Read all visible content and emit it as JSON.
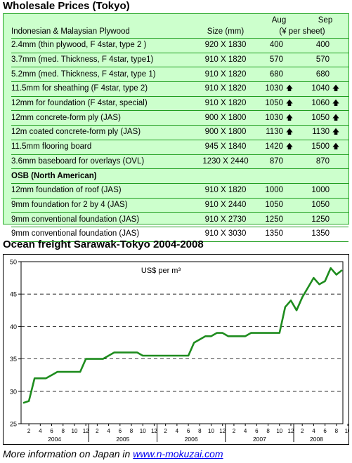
{
  "wholesale": {
    "title": "Wholesale Prices (Tokyo)",
    "header": {
      "category": "Indonesian & Malaysian Plywood",
      "size": "Size (mm)",
      "aug": "Aug",
      "sep": "Sep",
      "unit": "(¥ per sheet)"
    },
    "rows": [
      {
        "name": "2.4mm  (thin plywood, F 4star, type 2 )",
        "size": "920 X 1830",
        "aug": "400",
        "aug_up": false,
        "sep": "400",
        "sep_up": false,
        "bold": false
      },
      {
        "name": "3.7mm  (med. Thickness,  F 4star, type1)",
        "size": "910 X 1820",
        "aug": "570",
        "aug_up": false,
        "sep": "570",
        "sep_up": false,
        "bold": false
      },
      {
        "name": "5.2mm  (med. Thickness, F 4star, type 1)",
        "size": "910 X 1820",
        "aug": "680",
        "aug_up": false,
        "sep": "680",
        "sep_up": false,
        "bold": false
      },
      {
        "name": "11.5mm  for sheathing (F 4star, type 2)",
        "size": "910 X 1820",
        "aug": "1030",
        "aug_up": true,
        "sep": "1040",
        "sep_up": true,
        "bold": false
      },
      {
        "name": "12mm for foundation (F 4star, special)",
        "size": "910 X 1820",
        "aug": "1050",
        "aug_up": true,
        "sep": "1060",
        "sep_up": true,
        "bold": false
      },
      {
        "name": "12mm concrete-form ply (JAS)",
        "size": "900 X 1800",
        "aug": "1030",
        "aug_up": true,
        "sep": "1050",
        "sep_up": true,
        "bold": false
      },
      {
        "name": "12m coated concrete-form ply (JAS)",
        "size": "900 X 1800",
        "aug": "1130",
        "aug_up": true,
        "sep": "1130",
        "sep_up": true,
        "bold": false
      },
      {
        "name": "11.5mm flooring board",
        "size": "945 X 1840",
        "aug": "1420",
        "aug_up": true,
        "sep": "1500",
        "sep_up": true,
        "bold": false
      },
      {
        "name": "3.6mm baseboard for overlays (OVL)",
        "size": "1230 X 2440",
        "aug": "870",
        "aug_up": false,
        "sep": "870",
        "sep_up": false,
        "bold": false
      },
      {
        "name": "OSB (North American)",
        "size": "",
        "aug": "",
        "aug_up": false,
        "sep": "",
        "sep_up": false,
        "bold": true
      },
      {
        "name": "12mm foundation of roof (JAS)",
        "size": "910 X 1820",
        "aug": "1000",
        "aug_up": false,
        "sep": "1000",
        "sep_up": false,
        "bold": false
      },
      {
        "name": "9mm foundation for 2 by 4 (JAS)",
        "size": "910 X 2440",
        "aug": "1050",
        "aug_up": false,
        "sep": "1050",
        "sep_up": false,
        "bold": false
      },
      {
        "name": "9mm conventional foundation (JAS)",
        "size": "910 X 2730",
        "aug": "1250",
        "aug_up": false,
        "sep": "1250",
        "sep_up": false,
        "bold": false
      },
      {
        "name": "9mm conventional foundation (JAS)",
        "size": "910 X 3030",
        "aug": "1350",
        "aug_up": false,
        "sep": "1350",
        "sep_up": false,
        "bold": false
      }
    ],
    "up_arrow_glyph": "🡅"
  },
  "freight": {
    "title": "Ocean freight Sarawak-Tokyo 2004-2008"
  },
  "chart_data": {
    "type": "line",
    "title": "Ocean freight Sarawak-Tokyo 2004-2008",
    "annotation": "US$ per m³",
    "xlabel": "",
    "ylabel": "",
    "ylim": [
      25,
      50
    ],
    "yticks": [
      25,
      30,
      35,
      40,
      45,
      50
    ],
    "grid": "dashed horizontal at 35, 40, 45",
    "month_ticks": [
      "2",
      "4",
      "6",
      "8",
      "10",
      "12",
      "2",
      "4",
      "6",
      "8",
      "10",
      "12",
      "2",
      "4",
      "6",
      "8",
      "10",
      "12",
      "2",
      "4",
      "6",
      "8",
      "10",
      "12",
      "2",
      "4",
      "6",
      "8",
      "10"
    ],
    "year_labels": [
      {
        "label": "2004",
        "center_month_index": 6
      },
      {
        "label": "2005",
        "center_month_index": 18
      },
      {
        "label": "2006",
        "center_month_index": 30
      },
      {
        "label": "2007",
        "center_month_index": 42
      },
      {
        "label": "2008",
        "center_month_index": 52
      }
    ],
    "series": [
      {
        "color": "#1e8c1e",
        "x": [
          "2004-01",
          "2004-02",
          "2004-03",
          "2004-04",
          "2004-05",
          "2004-06",
          "2004-07",
          "2004-08",
          "2004-09",
          "2004-10",
          "2004-11",
          "2004-12",
          "2005-01",
          "2005-02",
          "2005-03",
          "2005-04",
          "2005-05",
          "2005-06",
          "2005-07",
          "2005-08",
          "2005-09",
          "2005-10",
          "2005-11",
          "2005-12",
          "2006-01",
          "2006-02",
          "2006-03",
          "2006-04",
          "2006-05",
          "2006-06",
          "2006-07",
          "2006-08",
          "2006-09",
          "2006-10",
          "2006-11",
          "2006-12",
          "2007-01",
          "2007-02",
          "2007-03",
          "2007-04",
          "2007-05",
          "2007-06",
          "2007-07",
          "2007-08",
          "2007-09",
          "2007-10",
          "2007-11",
          "2007-12",
          "2008-01",
          "2008-02",
          "2008-03",
          "2008-04",
          "2008-05",
          "2008-06",
          "2008-07",
          "2008-08",
          "2008-09"
        ],
        "values": [
          28.2,
          28.5,
          32,
          32,
          32,
          32.5,
          33,
          33,
          33,
          33,
          33,
          35,
          35,
          35,
          35,
          35.5,
          36,
          36,
          36,
          36,
          36,
          35.5,
          35.5,
          35.5,
          35.5,
          35.5,
          35.5,
          35.5,
          35.5,
          35.5,
          37.5,
          38,
          38.5,
          38.5,
          39,
          39,
          38.5,
          38.5,
          38.5,
          38.5,
          39,
          39,
          39,
          39,
          39,
          39,
          43,
          44,
          42.5,
          44.5,
          46,
          47.5,
          46.5,
          47,
          49,
          48,
          48.7
        ]
      }
    ]
  }
}
